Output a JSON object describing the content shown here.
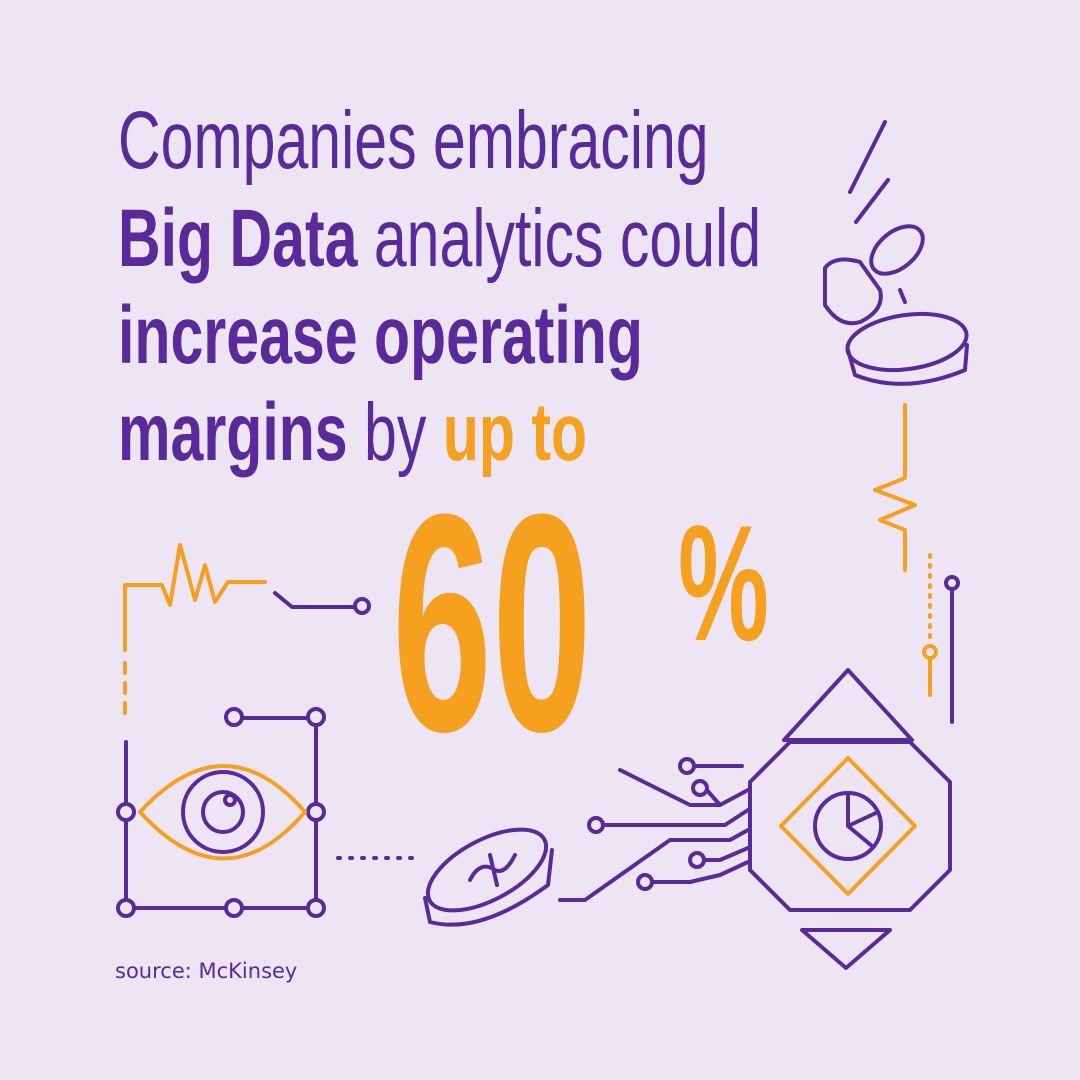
{
  "headline": {
    "line1": [
      {
        "text": "Companies embracing"
      }
    ],
    "line2": [
      {
        "text": "Big Data"
      },
      {
        "text": "analytics could"
      }
    ],
    "line3": [
      {
        "text": "increase operating"
      }
    ],
    "line4": [
      {
        "text": "margins"
      },
      {
        "text": "by"
      },
      {
        "text": "up to"
      }
    ]
  },
  "stat": {
    "number": "60",
    "unit": "%"
  },
  "source": "source: McKinsey"
}
